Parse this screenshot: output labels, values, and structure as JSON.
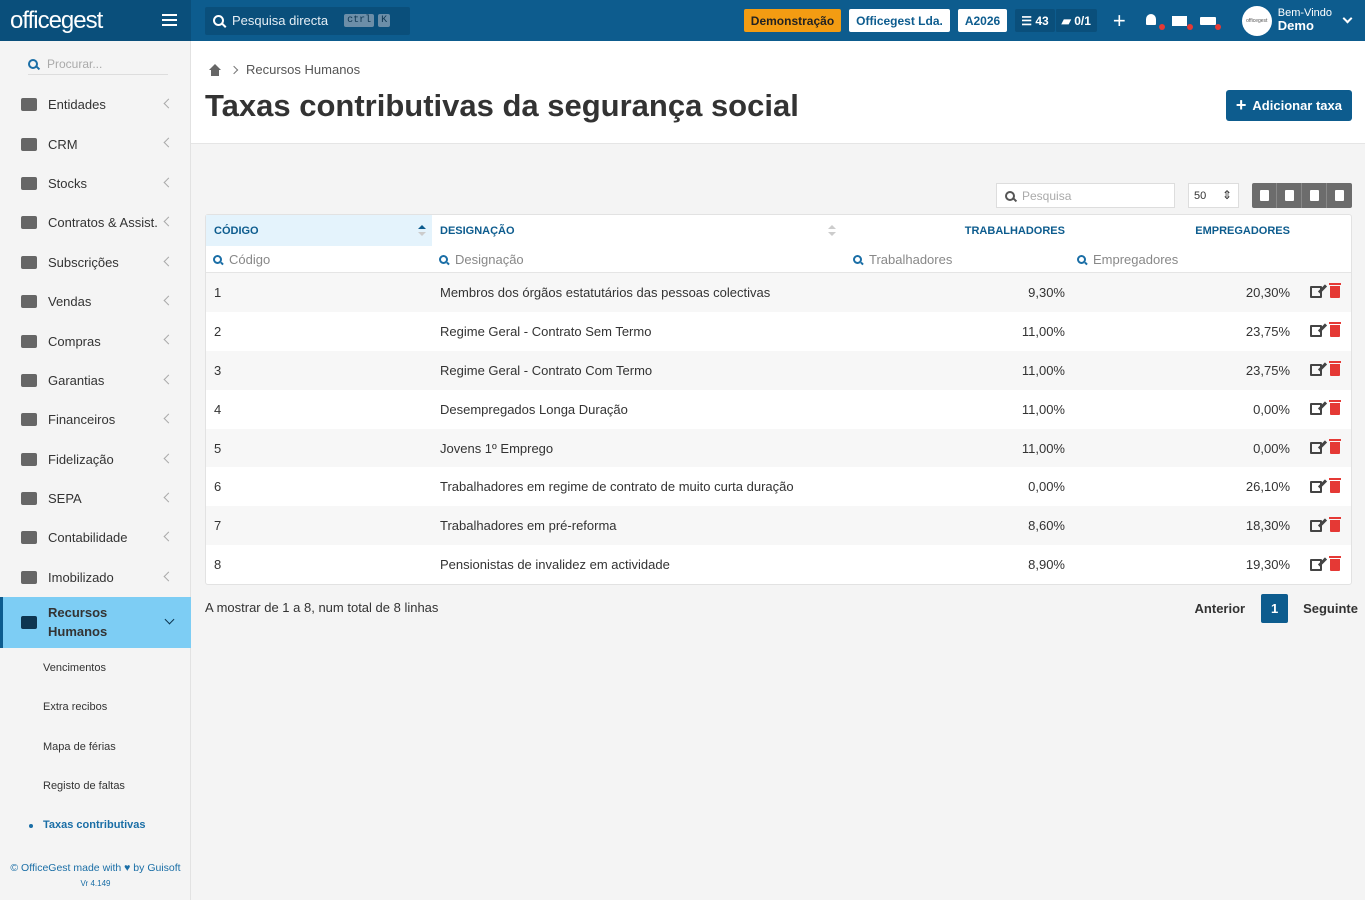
{
  "topbar": {
    "brand": "officegest",
    "search_label": "Pesquisa directa",
    "kbd_ctrl": "ctrl",
    "kbd_k": "K",
    "demo_chip": "Demonstração",
    "company_chip": "Officegest Lda.",
    "year_chip": "A2026",
    "tasks_count": "43",
    "folders_count": "0/1",
    "plus": "+",
    "avatar_text": "officegest",
    "welcome": "Bem-Vindo",
    "user_name": "Demo"
  },
  "sidebar": {
    "search_placeholder": "Procurar...",
    "items": [
      {
        "label": "Entidades",
        "icon": "users-icon"
      },
      {
        "label": "CRM",
        "icon": "book-icon"
      },
      {
        "label": "Stocks",
        "icon": "warehouse-icon"
      },
      {
        "label": "Contratos & Assist.",
        "icon": "contract-icon"
      },
      {
        "label": "Subscrições",
        "icon": "list-icon"
      },
      {
        "label": "Vendas",
        "icon": "euro-icon"
      },
      {
        "label": "Compras",
        "icon": "cart-icon"
      },
      {
        "label": "Garantias",
        "icon": "exchange-icon"
      },
      {
        "label": "Financeiros",
        "icon": "money-icon"
      },
      {
        "label": "Fidelização",
        "icon": "hand-icon"
      },
      {
        "label": "SEPA",
        "icon": "exchange-icon"
      },
      {
        "label": "Contabilidade",
        "icon": "calculator-icon"
      },
      {
        "label": "Imobilizado",
        "icon": "boxes-icon"
      }
    ],
    "active_line1": "Recursos",
    "active_line2": "Humanos",
    "subitems": [
      "Vencimentos",
      "Extra recibos",
      "Mapa de férias",
      "Registo de faltas",
      "Taxas contributivas"
    ],
    "footer_line1": "© OfficeGest made with ♥ by Guisoft",
    "footer_ver": "Vr 4.149"
  },
  "header": {
    "breadcrumb": "Recursos Humanos",
    "title": "Taxas contributivas da segurança social",
    "add_button": "Adicionar taxa"
  },
  "tools": {
    "search_placeholder": "Pesquisa",
    "page_size": "50"
  },
  "table": {
    "columns": [
      "CÓDIGO",
      "DESIGNAÇÃO",
      "TRABALHADORES",
      "EMPREGADORES"
    ],
    "filters": [
      "Código",
      "Designação",
      "Trabalhadores",
      "Empregadores"
    ],
    "rows": [
      {
        "code": "1",
        "name": "Membros dos órgãos estatutários das pessoas colectivas",
        "workers": "9,30%",
        "employers": "20,30%"
      },
      {
        "code": "2",
        "name": "Regime Geral - Contrato Sem Termo",
        "workers": "11,00%",
        "employers": "23,75%"
      },
      {
        "code": "3",
        "name": "Regime Geral - Contrato Com Termo",
        "workers": "11,00%",
        "employers": "23,75%"
      },
      {
        "code": "4",
        "name": "Desempregados Longa Duração",
        "workers": "11,00%",
        "employers": "0,00%"
      },
      {
        "code": "5",
        "name": "Jovens 1º Emprego",
        "workers": "11,00%",
        "employers": "0,00%"
      },
      {
        "code": "6",
        "name": "Trabalhadores em regime de contrato de muito curta duração",
        "workers": "0,00%",
        "employers": "26,10%"
      },
      {
        "code": "7",
        "name": "Trabalhadores em pré-reforma",
        "workers": "8,60%",
        "employers": "18,30%"
      },
      {
        "code": "8",
        "name": "Pensionistas de invalidez em actividade",
        "workers": "8,90%",
        "employers": "19,30%"
      }
    ]
  },
  "footer": {
    "summary": "A mostrar de 1 a 8, num total de 8 linhas",
    "prev": "Anterior",
    "page": "1",
    "next": "Seguinte"
  }
}
